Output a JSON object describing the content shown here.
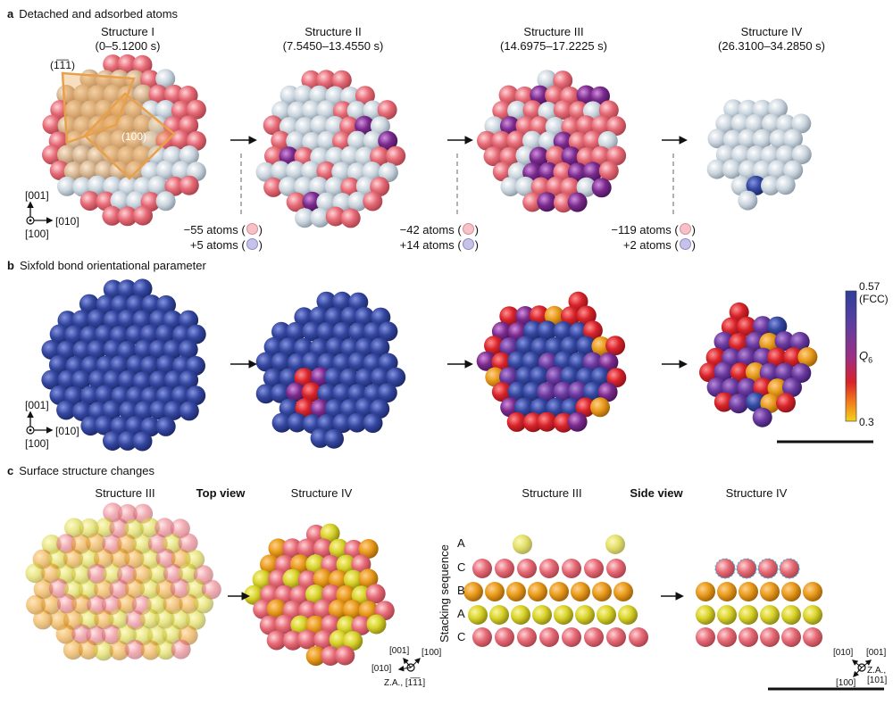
{
  "panel_a": {
    "letter": "a",
    "title": "Detached and adsorbed atoms",
    "structures": [
      {
        "name": "Structure I",
        "time": "(0–5.1200 s)"
      },
      {
        "name": "Structure II",
        "time": "(7.5450–13.4550 s)"
      },
      {
        "name": "Structure III",
        "time": "(14.6975–17.2225 s)"
      },
      {
        "name": "Structure IV",
        "time": "(26.3100–34.2850 s)"
      }
    ],
    "facet_111": "(1̅1̅1)",
    "facet_100": "(100)",
    "transitions": [
      {
        "detached": "−55 atoms (",
        "adsorbed": "+5 atoms ("
      },
      {
        "detached": "−42 atoms (",
        "adsorbed": "+14 atoms ("
      },
      {
        "detached": "−119 atoms (",
        "adsorbed": "+2 atoms ("
      }
    ],
    "close_paren": ")",
    "axes": {
      "up": "[001]",
      "right": "[010]",
      "out": "[100]"
    }
  },
  "panel_b": {
    "letter": "b",
    "title": "Sixfold bond orientational parameter",
    "axes": {
      "up": "[001]",
      "right": "[010]",
      "out": "[100]"
    },
    "colorbar": {
      "max": "0.57",
      "max_note": "(FCC)",
      "min": "0.3",
      "label": "Q",
      "label_sub": "6",
      "colors": [
        "#2e3f9a",
        "#5b3fa0",
        "#9a2f86",
        "#d8232a",
        "#f27a1a",
        "#f3d21a"
      ]
    }
  },
  "panel_c": {
    "letter": "c",
    "title": "Surface structure changes",
    "top_view": {
      "label": "Top view",
      "left": "Structure III",
      "right": "Structure IV",
      "axes": {
        "a1": "[001]",
        "a2": "[100]",
        "a3": "[010]",
        "za": "Z.A., [1̅1̅1]"
      }
    },
    "side_view": {
      "label": "Side view",
      "left": "Structure III",
      "right": "Structure IV",
      "stacking_label": "Stacking sequence",
      "layers": [
        "A",
        "C",
        "B",
        "A",
        "C"
      ],
      "axes": {
        "a1": "[010]",
        "a2": "[001]",
        "a3": "[100]",
        "za": "Z.A.,",
        "za2": "[101]"
      }
    }
  },
  "colors": {
    "atom_pink": "#e66a76",
    "atom_grey": "#c9d4dd",
    "atom_purple": "#7a2a8c",
    "atom_blue": "#3447a0",
    "facet_orange": "#e8a04a",
    "layer_yellow": "#d8d22a",
    "layer_orange": "#e89a1a",
    "circle_cyan": "#4fb4d8"
  }
}
